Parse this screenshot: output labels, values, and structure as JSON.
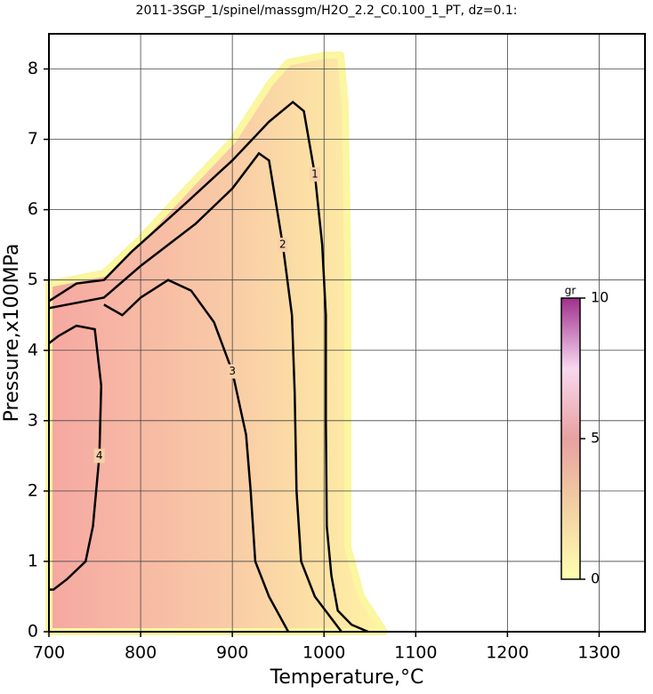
{
  "chart_data": {
    "type": "contour",
    "title": "2011-3SGP_1/spinel/massgm/H2O_2.2_C0.100_1_PT, dz=0.1:",
    "x_label": "Temperature,°C",
    "y_label": "Pressure,x100MPa",
    "xlim": [
      700,
      1350
    ],
    "xticks": [
      700,
      800,
      900,
      1000,
      1100,
      1200,
      1300
    ],
    "ylim": [
      0,
      8.5
    ],
    "yticks": [
      0,
      1,
      2,
      3,
      4,
      5,
      6,
      7,
      8
    ],
    "grid": true,
    "contours": [
      {
        "level": 1,
        "color": "#000000",
        "x": [
          700,
          730,
          760,
          790,
          850,
          900,
          940,
          966,
          978,
          990,
          998,
          1002,
          1002,
          1003,
          1008,
          1015,
          1030,
          1048
        ],
        "y": [
          4.7,
          4.95,
          5.0,
          5.4,
          6.1,
          6.7,
          7.25,
          7.53,
          7.4,
          6.5,
          5.5,
          4.5,
          3.0,
          1.5,
          0.8,
          0.3,
          0.1,
          0
        ]
      },
      {
        "level": 2,
        "color": "#000000",
        "x": [
          700,
          760,
          800,
          860,
          900,
          929,
          940,
          955,
          965,
          968,
          970,
          975,
          990,
          1019
        ],
        "y": [
          4.6,
          4.75,
          5.2,
          5.8,
          6.3,
          6.8,
          6.7,
          5.5,
          4.5,
          3.4,
          2.0,
          1.0,
          0.5,
          0
        ]
      },
      {
        "level": 3,
        "color": "#000000",
        "x": [
          760,
          780,
          800,
          830,
          855,
          880,
          900,
          915,
          920,
          925,
          940,
          961
        ],
        "y": [
          4.65,
          4.5,
          4.75,
          5.0,
          4.85,
          4.4,
          3.7,
          2.8,
          2.0,
          1.0,
          0.5,
          0
        ]
      },
      {
        "level": 4,
        "color": "#000000",
        "x": [
          700,
          710,
          730,
          750,
          757,
          755,
          748,
          740,
          720,
          705,
          700
        ],
        "y": [
          4.1,
          4.2,
          4.35,
          4.3,
          3.5,
          2.5,
          1.5,
          1.0,
          0.75,
          0.6,
          0.6
        ]
      }
    ],
    "colorbar": {
      "label": "gr",
      "lim": [
        0,
        10
      ],
      "ticks": [
        0,
        5,
        10
      ]
    }
  }
}
